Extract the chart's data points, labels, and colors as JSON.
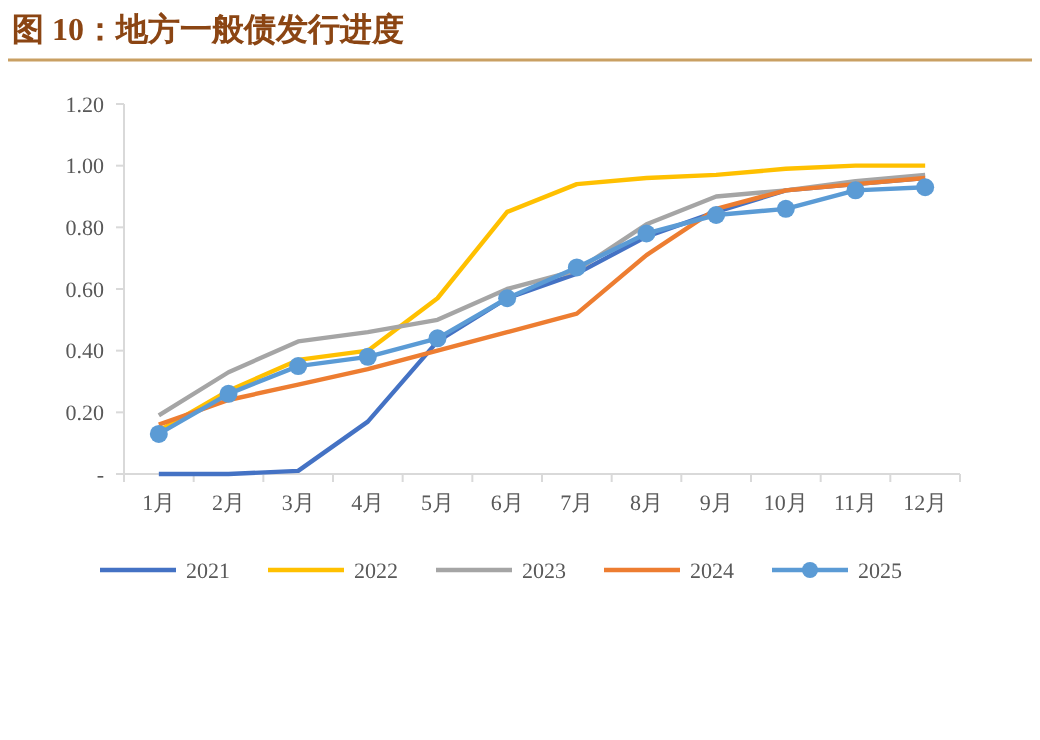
{
  "chart_data": {
    "type": "line",
    "title": "图 10：地方一般债发行进度",
    "categories": [
      "1月",
      "2月",
      "3月",
      "4月",
      "5月",
      "6月",
      "7月",
      "8月",
      "9月",
      "10月",
      "11月",
      "12月"
    ],
    "series": [
      {
        "name": "2021",
        "color": "#4472c4",
        "values": [
          0,
          0,
          0.01,
          0.17,
          0.43,
          0.57,
          0.65,
          0.77,
          0.85,
          0.92,
          0.94,
          0.96
        ]
      },
      {
        "name": "2022",
        "color": "#ffc000",
        "values": [
          0.14,
          0.27,
          0.37,
          0.4,
          0.57,
          0.85,
          0.94,
          0.96,
          0.97,
          0.99,
          1.0,
          1.0
        ]
      },
      {
        "name": "2023",
        "color": "#a5a5a5",
        "values": [
          0.19,
          0.33,
          0.43,
          0.46,
          0.5,
          0.6,
          0.66,
          0.81,
          0.9,
          0.92,
          0.95,
          0.97
        ]
      },
      {
        "name": "2024",
        "color": "#ed7d31",
        "values": [
          0.16,
          0.24,
          0.29,
          0.34,
          0.4,
          0.46,
          0.52,
          0.71,
          0.86,
          0.92,
          0.94,
          0.96
        ]
      },
      {
        "name": "2025",
        "color": "#5b9bd5",
        "marker": "circle",
        "values": [
          0.13,
          0.26,
          0.35,
          0.38,
          0.44,
          0.57,
          0.67,
          0.78,
          0.84,
          0.86,
          0.92,
          0.93
        ]
      }
    ],
    "ylim": [
      0,
      1.2
    ],
    "yticks": [
      {
        "value": 0,
        "label": "-"
      },
      {
        "value": 0.2,
        "label": "0.20"
      },
      {
        "value": 0.4,
        "label": "0.40"
      },
      {
        "value": 0.6,
        "label": "0.60"
      },
      {
        "value": 0.8,
        "label": "0.80"
      },
      {
        "value": 1.0,
        "label": "1.00"
      },
      {
        "value": 1.2,
        "label": "1.20"
      }
    ],
    "grid": false,
    "legend": "bottom",
    "marker": "none",
    "line_style": "solid"
  }
}
